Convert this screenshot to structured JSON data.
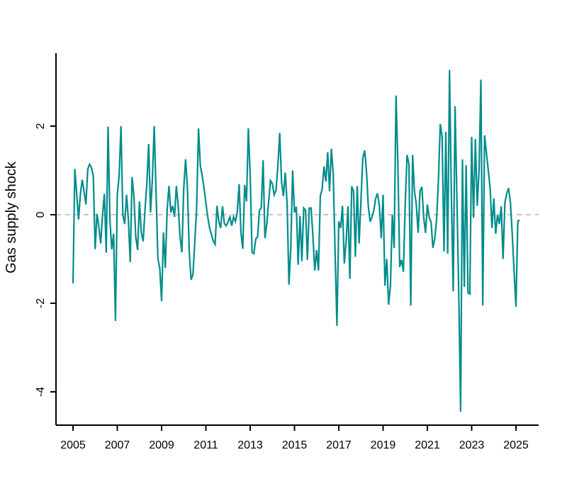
{
  "figure": {
    "background": "#ffffff",
    "axis_color": "#000000",
    "series_color": "#008C8C",
    "zero_line_color": "#b3b3b3",
    "ylabel": "Gas supply shock"
  },
  "chart_data": {
    "type": "line",
    "title": "",
    "xlabel": "",
    "ylabel": "Gas supply shock",
    "grid": false,
    "legend_position": "none",
    "zero_reference_line": true,
    "x_tick_labels": [
      "2005",
      "2007",
      "2009",
      "2011",
      "2013",
      "2015",
      "2017",
      "2019",
      "2021",
      "2023",
      "2025"
    ],
    "x_ticks": [
      2005,
      2007,
      2009,
      2011,
      2013,
      2015,
      2017,
      2019,
      2021,
      2023,
      2025
    ],
    "y_tick_labels": [
      "-4",
      "-2",
      "0",
      "2"
    ],
    "y_ticks": [
      -4,
      -2,
      0,
      2
    ],
    "xlim": [
      2004.23,
      2026.02
    ],
    "ylim": [
      -4.75,
      3.65
    ],
    "x_start_year": 2005,
    "frequency": "monthly",
    "series": [
      {
        "name": "Gas supply shock",
        "start": "2005-01",
        "values": [
          -1.55,
          1.03,
          0.47,
          -0.11,
          0.47,
          0.79,
          0.53,
          0.23,
          1.03,
          1.14,
          1.06,
          0.87,
          -0.78,
          0.02,
          -0.27,
          -0.65,
          0.0,
          0.47,
          -0.86,
          1.99,
          -0.11,
          -0.78,
          -0.43,
          -2.4,
          0.45,
          0.88,
          2.0,
          0.0,
          -0.21,
          0.45,
          -0.11,
          -1.07,
          0.85,
          0.42,
          -0.5,
          -0.8,
          0.3,
          -0.4,
          -0.6,
          0.1,
          0.7,
          1.6,
          0.05,
          0.8,
          2.0,
          0.5,
          -1.0,
          -1.2,
          -1.95,
          -0.4,
          -1.2,
          0.1,
          0.65,
          0.05,
          0.2,
          -0.05,
          0.65,
          0.2,
          -0.5,
          -0.85,
          0.6,
          1.25,
          0.6,
          -0.85,
          -1.47,
          -1.35,
          -0.6,
          0.15,
          1.95,
          1.1,
          0.88,
          0.6,
          0.27,
          -0.05,
          -0.3,
          -0.45,
          -0.6,
          -0.67,
          0.2,
          -0.15,
          -0.3,
          0.19,
          -0.2,
          -0.25,
          -0.16,
          -0.05,
          -0.25,
          -0.05,
          -0.15,
          0.05,
          0.69,
          -0.4,
          -0.77,
          0.67,
          0.3,
          1.95,
          0.9,
          -0.85,
          -0.88,
          -0.55,
          -0.5,
          0.1,
          0.15,
          1.23,
          -0.53,
          -0.2,
          0.3,
          0.77,
          0.7,
          0.45,
          0.55,
          1.1,
          1.85,
          0.74,
          0.42,
          0.95,
          0.26,
          -1.58,
          -0.75,
          1.0,
          0.05,
          0.18,
          -1.13,
          -0.03,
          -1.05,
          0.15,
          0.1,
          -1.02,
          0.15,
          0.15,
          -0.49,
          -1.26,
          -0.8,
          -1.26,
          0.42,
          0.58,
          1.09,
          0.75,
          1.41,
          0.53,
          1.49,
          0.91,
          -0.85,
          -2.51,
          -0.15,
          -0.3,
          0.2,
          -1.1,
          -0.6,
          0.19,
          -1.45,
          0.64,
          0.53,
          -0.95,
          0.65,
          -0.65,
          0.3,
          1.28,
          1.45,
          0.99,
          0.19,
          -0.16,
          -0.05,
          0.1,
          0.37,
          0.48,
          0.19,
          -0.53,
          0.45,
          -1.6,
          -1.0,
          -2.03,
          -1.6,
          0.0,
          -0.75,
          2.69,
          1.2,
          -1.18,
          -1.02,
          -1.29,
          0.25,
          1.35,
          1.15,
          -2.05,
          1.35,
          0.53,
          0.23,
          -0.41,
          0.53,
          0.63,
          -0.06,
          -0.41,
          0.23,
          -0.06,
          -0.17,
          -0.75,
          -0.54,
          -0.11,
          0.8,
          2.05,
          1.76,
          -0.83,
          1.87,
          -0.88,
          3.27,
          0.43,
          -1.73,
          2.45,
          0.37,
          -1.76,
          -4.45,
          1.25,
          -1.63,
          1.12,
          -1.76,
          -1.79,
          1.76,
          -0.07,
          1.71,
          0.2,
          1.0,
          3.05,
          -2.05,
          1.79,
          1.39,
          1.0,
          0.6,
          -0.3,
          0.37,
          -0.43,
          0.0,
          -0.21,
          0.19,
          -1.0,
          0.27,
          0.48,
          0.6,
          0.27,
          -0.45,
          -1.3,
          -2.08,
          -0.15,
          -0.12
        ]
      }
    ]
  }
}
